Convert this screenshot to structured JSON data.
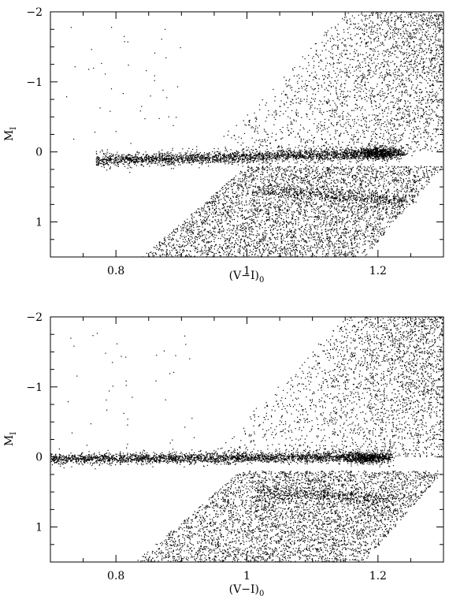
{
  "chart_data": [
    {
      "type": "scatter",
      "panel": "top",
      "xlabel": "(V−I)",
      "xlabel_sub": "0",
      "ylabel": "M",
      "ylabel_sub": "I",
      "xlim": [
        0.7,
        1.3
      ],
      "ylim": [
        1.5,
        -2
      ],
      "y_inverted": true,
      "xticks_labeled": [
        0.8,
        1.0,
        1.2
      ],
      "xtick_labels": [
        "0.8",
        "1",
        "1.2"
      ],
      "yticks_labeled": [
        -2,
        -1,
        0,
        1
      ],
      "ytick_labels": [
        "−2",
        "−1",
        "0",
        "1"
      ],
      "grid": false,
      "legend": "none",
      "features": {
        "red_clump": {
          "x_start": 0.77,
          "x_end": 1.24,
          "y_start": 0.12,
          "y_end": 0.02,
          "width": 0.05
        },
        "red_giant_branch": {
          "x_at_y1_5": 1.3,
          "x_at_y0_2": 1.28,
          "note": "upper right diffuse cloud"
        },
        "lower_band": {
          "x_start": 0.84,
          "x_end": 1.3,
          "y_start": 1.5,
          "y_end": 0.3
        },
        "secondary_branch": {
          "x_start": 1.02,
          "x_end": 1.25,
          "y_start": 0.55,
          "y_end": 0.7
        }
      }
    },
    {
      "type": "scatter",
      "panel": "bottom",
      "xlabel": "(V−I)",
      "xlabel_sub": "0",
      "ylabel": "M",
      "ylabel_sub": "I",
      "xlim": [
        0.7,
        1.3
      ],
      "ylim": [
        1.5,
        -2
      ],
      "y_inverted": true,
      "xticks_labeled": [
        0.8,
        1.0,
        1.2
      ],
      "xtick_labels": [
        "0.8",
        "1",
        "1.2"
      ],
      "yticks_labeled": [
        -2,
        -1,
        0,
        1
      ],
      "ytick_labels": [
        "−2",
        "−1",
        "0",
        "1"
      ],
      "grid": false,
      "legend": "none",
      "features": {
        "red_clump": {
          "x_start": 0.7,
          "x_end": 1.22,
          "y_start": 0.03,
          "y_end": 0.0,
          "width": 0.04
        },
        "red_giant_branch": {
          "x_at_y1_5": 1.3,
          "x_at_y0_2": 1.28,
          "note": "upper right diffuse cloud"
        },
        "lower_band": {
          "x_start": 0.83,
          "x_end": 1.3,
          "y_start": 1.5,
          "y_end": 0.1
        },
        "secondary_branch": {
          "x_start": 1.02,
          "x_end": 1.22,
          "y_start": 0.5,
          "y_end": 0.6
        }
      }
    }
  ]
}
